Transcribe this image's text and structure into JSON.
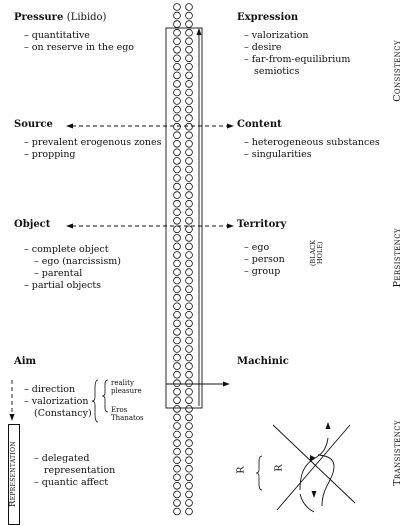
{
  "pressure": {
    "title": "Pressure",
    "paren": "(Libido)",
    "items": [
      "– quantitative",
      "– on reserve in the ego"
    ]
  },
  "expression": {
    "title": "Expression",
    "items": [
      "– valorization",
      "– desire",
      "– far-from-equilibrium",
      "semiotics"
    ]
  },
  "source": {
    "title": "Source",
    "items": [
      "– prevalent erogenous zones",
      "– propping"
    ]
  },
  "content": {
    "title": "Content",
    "items": [
      "– heterogeneous substances",
      "– singularities"
    ]
  },
  "object": {
    "title": "Object",
    "items": [
      "– complete object",
      "– ego (narcissism)",
      "– parental",
      "– partial objects"
    ]
  },
  "territory": {
    "title": "Territory",
    "items": [
      "– ego",
      "– person",
      "– group"
    ],
    "black_hole": [
      "(BLACK",
      "HOLE)"
    ]
  },
  "aim": {
    "title": "Aim",
    "items": [
      "– direction",
      "– valorization",
      "(Constancy)"
    ],
    "pair1": [
      "reality",
      "pleasure"
    ],
    "pair2": [
      "Eros",
      "Thanatos"
    ],
    "rep_items": [
      "– delegated",
      "representation",
      "– quantic affect"
    ]
  },
  "machinic": {
    "title": "Machinic"
  },
  "representation_box": "Representation",
  "bands": {
    "consistency": "Consistency",
    "persistency": "Persistency",
    "transistency": "Transistency"
  },
  "r_labels": [
    "R",
    "R"
  ]
}
